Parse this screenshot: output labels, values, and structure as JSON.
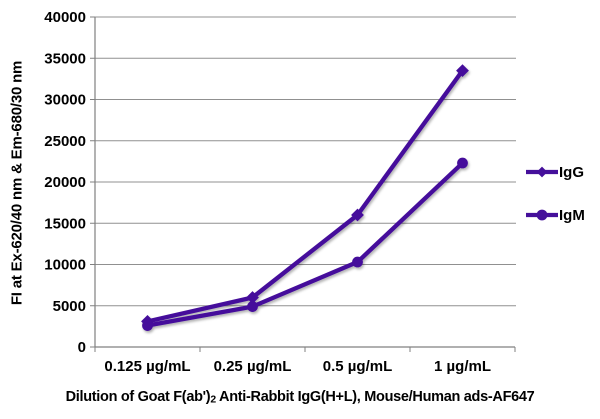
{
  "chart_data": {
    "type": "line",
    "title": "",
    "ylabel": "FI at Ex-620/40 nm & Em-680/30 nm",
    "xlabel_parts": {
      "pre": "Dilution of Goat F(ab')",
      "sub": "2",
      "post": " Anti-Rabbit IgG(H+L), Mouse/Human ads-AF647"
    },
    "categories": [
      "0.125 µg/mL",
      "0.25 µg/mL",
      "0.5 µg/mL",
      "1 µg/mL"
    ],
    "series": [
      {
        "name": "IgG",
        "marker": "diamond",
        "values": [
          3100,
          6000,
          16000,
          33500
        ]
      },
      {
        "name": "IgM",
        "marker": "circle",
        "values": [
          2600,
          4900,
          10300,
          22300
        ]
      }
    ],
    "ylim": [
      0,
      40000
    ],
    "yticks": [
      0,
      5000,
      10000,
      15000,
      20000,
      25000,
      30000,
      35000,
      40000
    ],
    "grid": true,
    "legend_position": "right",
    "colors": {
      "series": "#45109b",
      "gridline": "#909090",
      "axis": "#808080",
      "text": "#000000"
    }
  }
}
